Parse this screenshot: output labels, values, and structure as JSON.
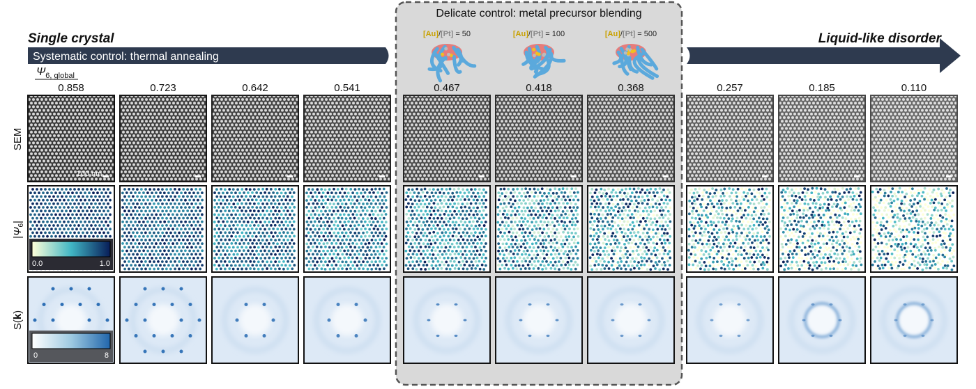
{
  "header": {
    "left_title": "Single crystal",
    "right_title": "Liquid-like disorder",
    "annealing": "Systematic control: thermal annealing",
    "blending": "Delicate control: metal precursor blending"
  },
  "precursors": [
    {
      "au": "[Au]",
      "slash": "/",
      "pt": "[Pt]",
      "ratio": "= 50"
    },
    {
      "au": "[Au]",
      "slash": "/",
      "pt": "[Pt]",
      "ratio": "= 100"
    },
    {
      "au": "[Au]",
      "slash": "/",
      "pt": "[Pt]",
      "ratio": "= 500"
    }
  ],
  "order_parameter": {
    "symbol": "Ψ",
    "subscript": "6, global"
  },
  "values": [
    "0.858",
    "0.723",
    "0.642",
    "0.541",
    "0.467",
    "0.418",
    "0.368",
    "0.257",
    "0.185",
    "0.110"
  ],
  "rows": {
    "sem": "SEM",
    "psi": {
      "open": "|",
      "symbol": "Ψ",
      "subscript": "6",
      "close": "|"
    },
    "sk": {
      "prefix": "S(",
      "k": "k",
      "suffix": ")"
    }
  },
  "scale_bar": "100 nm",
  "colorbars": {
    "psi": {
      "min": "0.0",
      "max": "1.0"
    },
    "sk": {
      "min": "0",
      "max": "8"
    }
  }
}
